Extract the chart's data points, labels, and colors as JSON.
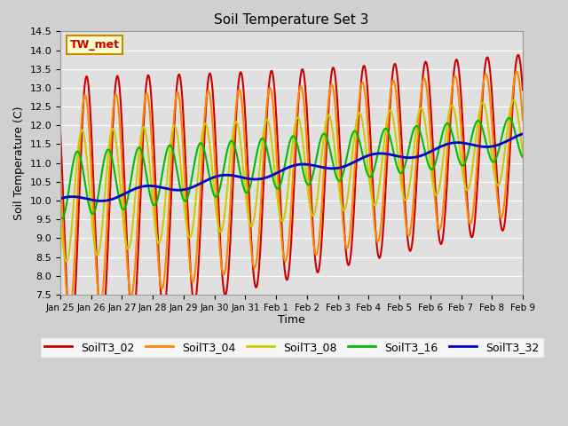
{
  "title": "Soil Temperature Set 3",
  "xlabel": "Time",
  "ylabel": "Soil Temperature (C)",
  "ylim": [
    7.5,
    14.5
  ],
  "n_days": 15,
  "annotation": "TW_met",
  "annotation_color": "#cc0000",
  "annotation_bg": "#ffffcc",
  "annotation_border": "#cc8800",
  "fig_bg": "#d0d0d0",
  "axes_bg": "#e0e0e0",
  "grid_color": "#ffffff",
  "series_colors": {
    "SoilT3_02": "#cc0000",
    "SoilT3_04": "#ff8800",
    "SoilT3_08": "#cccc00",
    "SoilT3_16": "#00bb00",
    "SoilT3_32": "#0000cc"
  },
  "series_lw": {
    "SoilT3_02": 1.5,
    "SoilT3_04": 1.5,
    "SoilT3_08": 1.5,
    "SoilT3_16": 1.5,
    "SoilT3_32": 2.0
  },
  "tick_labels": [
    "Jan 25",
    "Jan 26",
    "Jan 27",
    "Jan 28",
    "Jan 29",
    "Jan 30",
    "Jan 31",
    "Feb 1",
    "Feb 2",
    "Feb 3",
    "Feb 4",
    "Feb 5",
    "Feb 6",
    "Feb 7",
    "Feb 8",
    "Feb 9"
  ],
  "yticks": [
    7.5,
    8.0,
    8.5,
    9.0,
    9.5,
    10.0,
    10.5,
    11.0,
    11.5,
    12.0,
    12.5,
    13.0,
    13.5,
    14.0,
    14.5
  ],
  "legend_labels": [
    "SoilT3_02",
    "SoilT3_04",
    "SoilT3_08",
    "SoilT3_16",
    "SoilT3_32"
  ]
}
